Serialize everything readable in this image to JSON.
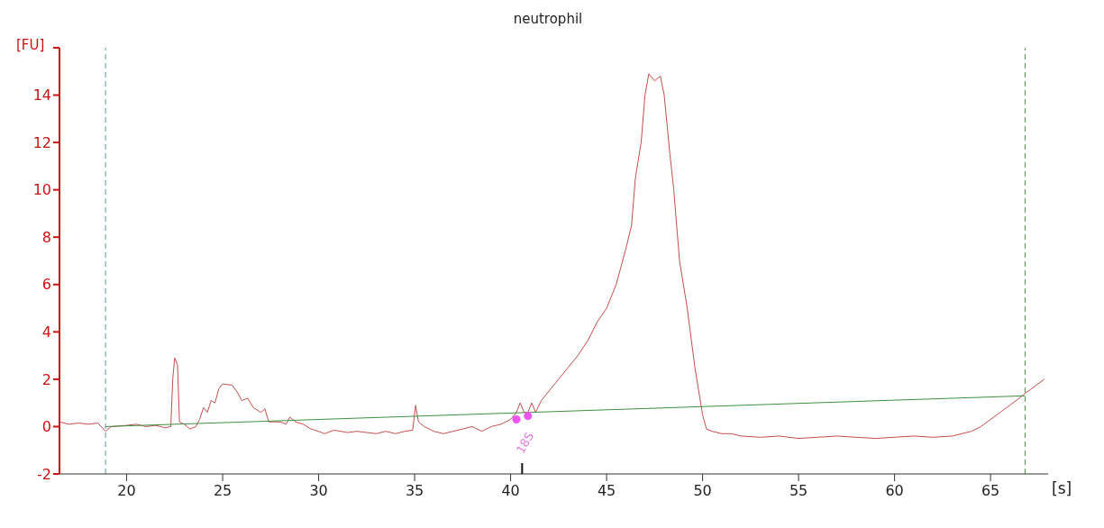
{
  "chart_data": {
    "type": "line",
    "title": "neutrophil",
    "xlabel": "[s]",
    "ylabel": "[FU]",
    "xlim": [
      16.5,
      68
    ],
    "ylim": [
      -2,
      16
    ],
    "xticks": [
      20,
      25,
      30,
      35,
      40,
      45,
      50,
      55,
      60,
      65
    ],
    "yticks": [
      -2,
      0,
      2,
      4,
      6,
      8,
      10,
      12,
      14,
      {
        "value": 16,
        "label": null
      }
    ],
    "series": [
      {
        "color": "#c0504d",
        "x": [
          16.5,
          17,
          17.5,
          18,
          18.5,
          18.9,
          19.2,
          20,
          20.5,
          21,
          21.5,
          22,
          22.3,
          22.4,
          22.5,
          22.65,
          22.75,
          23,
          23.3,
          23.6,
          23.8,
          24,
          24.2,
          24.4,
          24.6,
          24.8,
          25,
          25.5,
          25.8,
          26,
          26.3,
          26.6,
          27,
          27.2,
          27.4,
          28,
          28.3,
          28.5,
          28.8,
          29.2,
          29.6,
          30,
          30.3,
          30.8,
          31.5,
          32,
          33,
          33.5,
          34,
          34.5,
          34.9,
          35.05,
          35.2,
          35.5,
          36,
          36.5,
          37,
          37.5,
          38,
          38.5,
          39,
          39.5,
          40,
          40.3,
          40.5,
          40.7,
          40.9,
          41.1,
          41.3,
          41.6,
          42,
          42.5,
          43,
          43.5,
          44,
          44.5,
          45,
          45.5,
          46,
          46.3,
          46.5,
          46.8,
          47,
          47.2,
          47.5,
          47.8,
          48,
          48.3,
          48.5,
          48.8,
          49.2,
          49.6,
          50,
          50.2,
          50.5,
          51,
          51.5,
          52,
          53,
          54,
          55,
          56,
          57,
          58,
          59,
          60,
          61,
          62,
          63,
          63.5,
          64,
          64.5,
          65,
          65.5,
          66,
          66.5,
          66.8,
          67.3,
          67.8
        ],
        "values": [
          0.2,
          0.1,
          0.15,
          0.1,
          0.15,
          -0.2,
          0.0,
          0.05,
          0.1,
          0.0,
          0.05,
          -0.05,
          0.0,
          2.0,
          2.9,
          2.6,
          0.2,
          0.1,
          -0.1,
          0.0,
          0.3,
          0.8,
          0.6,
          1.1,
          1.0,
          1.6,
          1.8,
          1.75,
          1.4,
          1.1,
          1.2,
          0.8,
          0.6,
          0.75,
          0.2,
          0.2,
          0.1,
          0.4,
          0.2,
          0.1,
          -0.1,
          -0.2,
          -0.3,
          -0.15,
          -0.25,
          -0.2,
          -0.3,
          -0.2,
          -0.3,
          -0.2,
          -0.15,
          0.9,
          0.2,
          0.0,
          -0.2,
          -0.3,
          -0.2,
          -0.1,
          0.0,
          -0.2,
          0.0,
          0.1,
          0.3,
          0.6,
          1.0,
          0.6,
          0.6,
          1.0,
          0.6,
          1.1,
          1.5,
          2.0,
          2.5,
          3.0,
          3.6,
          4.4,
          5.0,
          6.0,
          7.5,
          8.5,
          10.5,
          12.0,
          14.0,
          14.9,
          14.6,
          14.8,
          14.0,
          11.5,
          10.0,
          7.0,
          5.0,
          2.5,
          0.5,
          -0.1,
          -0.2,
          -0.3,
          -0.3,
          -0.4,
          -0.45,
          -0.4,
          -0.5,
          -0.45,
          -0.4,
          -0.45,
          -0.5,
          -0.45,
          -0.4,
          -0.45,
          -0.4,
          -0.3,
          -0.2,
          0.0,
          0.3,
          0.6,
          0.9,
          1.2,
          1.4,
          1.7,
          2.0
        ]
      },
      {
        "type": "line",
        "color": "#3f8f3f",
        "x": [
          18.9,
          66.8
        ],
        "values": [
          0,
          1.3
        ]
      },
      {
        "type": "scatter",
        "color": "#ee55ee",
        "x": [
          40.3,
          40.9
        ],
        "values": [
          0.3,
          0.45
        ]
      }
    ],
    "ref_lines": [
      {
        "axis": "x",
        "value": 18.9,
        "label": null,
        "color": "#5a9a9a",
        "line_style": "dashed"
      },
      {
        "axis": "x",
        "value": 66.8,
        "label": null,
        "color": "#4a9a4a",
        "line_style": "dashed"
      }
    ],
    "annotations": [
      "18S"
    ]
  }
}
